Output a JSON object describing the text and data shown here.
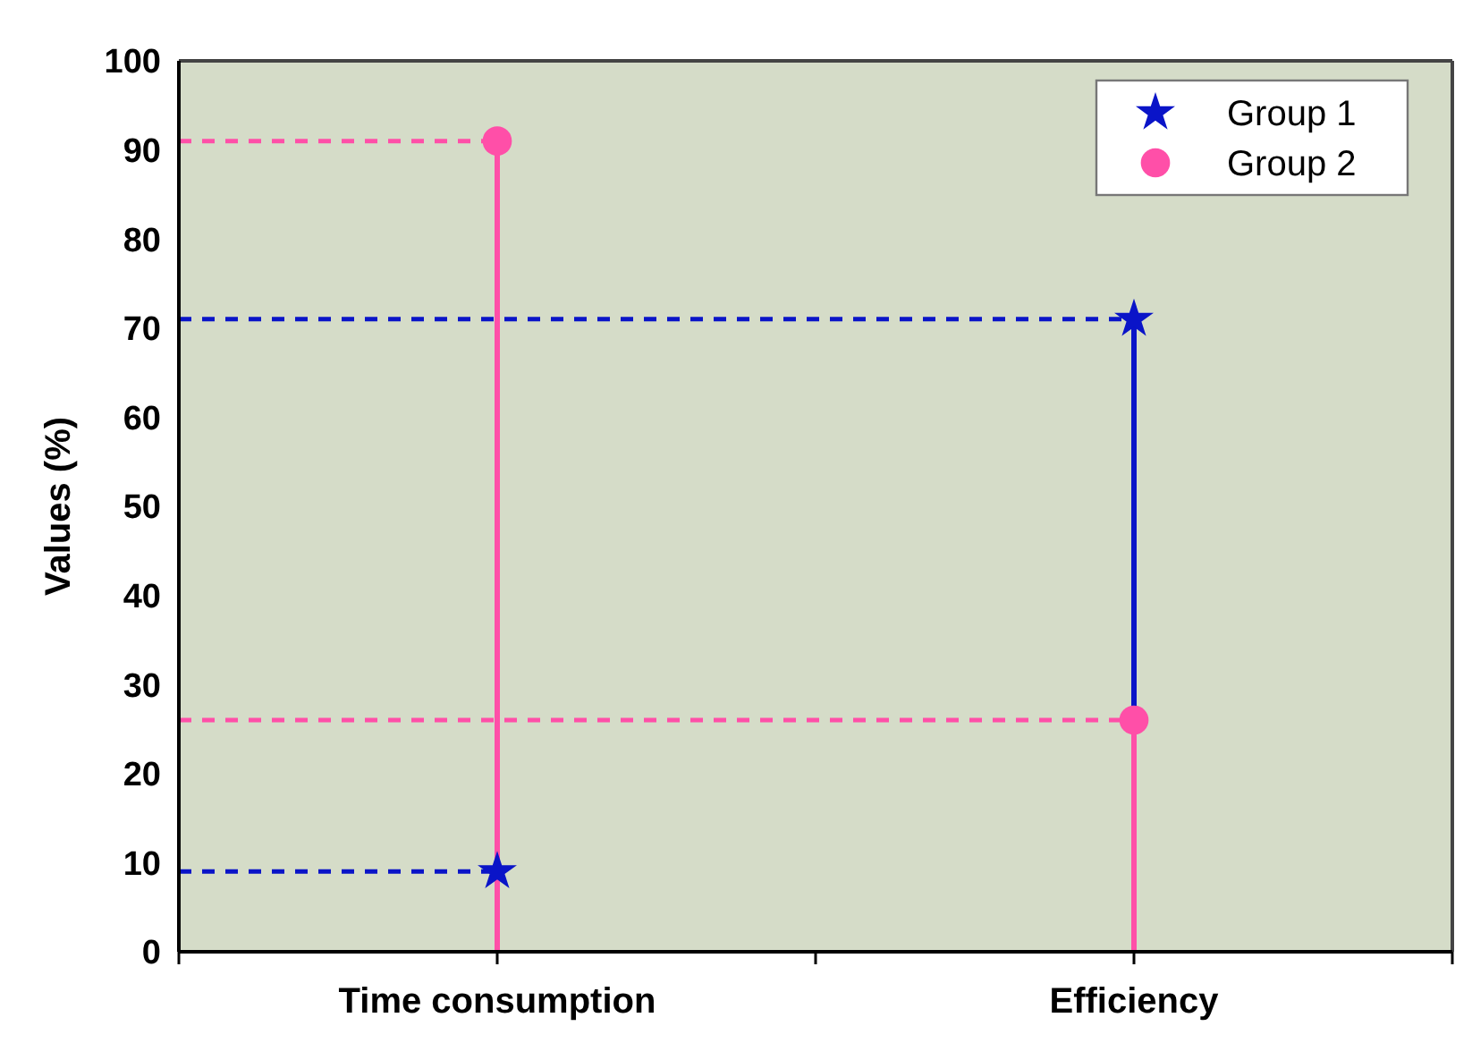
{
  "chart_data": {
    "type": "lollipop",
    "ylabel": "Values (%)",
    "categories": [
      "Time consumption",
      "Efficiency"
    ],
    "series": [
      {
        "name": "Group 1",
        "color": "#0a14c8",
        "marker": "star",
        "values": [
          9,
          71
        ]
      },
      {
        "name": "Group 2",
        "color": "#ff4fa8",
        "marker": "circle",
        "values": [
          91,
          26
        ]
      }
    ],
    "ref_lines": [
      {
        "axis": "y",
        "value": 91,
        "color": "#ff4fa8",
        "line_style": "dashed"
      },
      {
        "axis": "y",
        "value": 71,
        "color": "#0a14c8",
        "line_style": "dashed"
      },
      {
        "axis": "y",
        "value": 26,
        "color": "#ff4fa8",
        "line_style": "dashed"
      },
      {
        "axis": "y",
        "value": 9,
        "color": "#0a14c8",
        "line_style": "dashed"
      }
    ],
    "ylim": [
      0,
      100
    ],
    "yticks": [
      0,
      10,
      20,
      30,
      40,
      50,
      60,
      70,
      80,
      90,
      100
    ],
    "legend": "top right"
  }
}
